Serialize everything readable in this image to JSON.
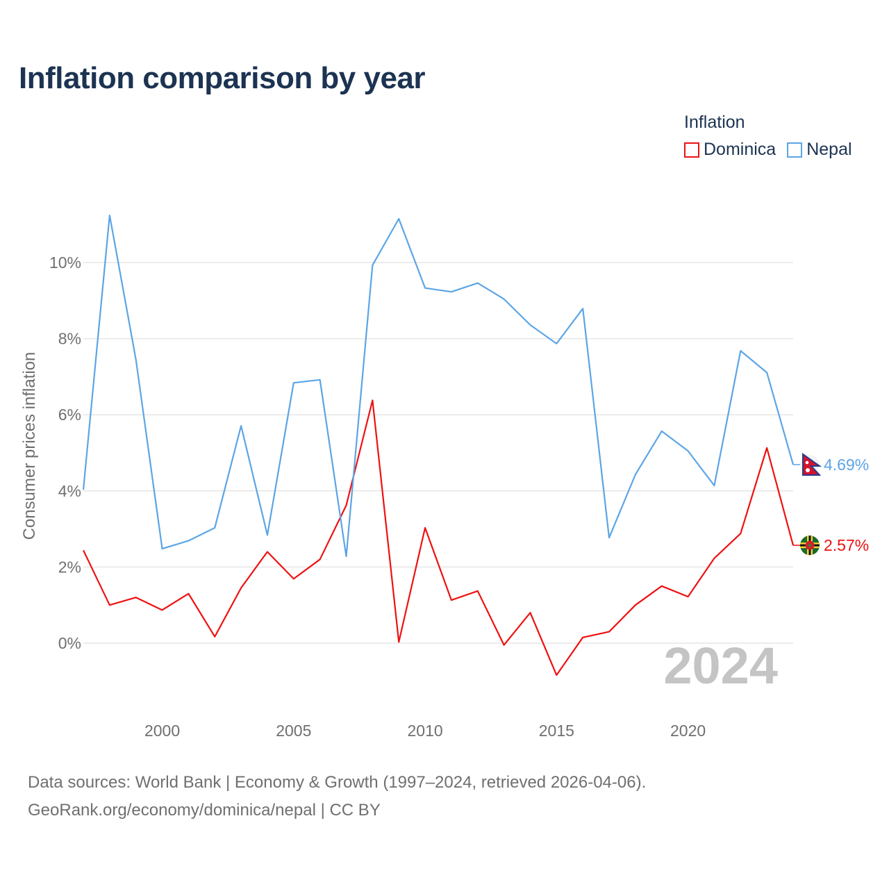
{
  "chart_data": {
    "type": "line",
    "title": "Inflation comparison by year",
    "legend_title": "Inflation",
    "ylabel": "Consumer prices inflation",
    "xlabel": "",
    "x": [
      1997,
      1998,
      1999,
      2000,
      2001,
      2002,
      2003,
      2004,
      2005,
      2006,
      2007,
      2008,
      2009,
      2010,
      2011,
      2012,
      2013,
      2014,
      2015,
      2016,
      2017,
      2018,
      2019,
      2020,
      2021,
      2022,
      2023,
      2024
    ],
    "xticks": [
      2000,
      2005,
      2010,
      2015,
      2020
    ],
    "xtick_labels": [
      "2000",
      "2005",
      "2010",
      "2015",
      "2020"
    ],
    "yticks": [
      0,
      2,
      4,
      6,
      8,
      10
    ],
    "ytick_labels": [
      "0%",
      "2%",
      "4%",
      "6%",
      "8%",
      "10%"
    ],
    "xlim": [
      1997,
      2024
    ],
    "ylim": [
      -1.5,
      11.5
    ],
    "year_watermark": "2024",
    "series": [
      {
        "name": "Dominica",
        "color": "#ee1111",
        "values": [
          2.44,
          1.0,
          1.2,
          0.87,
          1.3,
          0.17,
          1.45,
          2.4,
          1.69,
          2.2,
          3.62,
          6.38,
          0.03,
          3.03,
          1.13,
          1.37,
          -0.05,
          0.8,
          -0.84,
          0.15,
          0.3,
          1.0,
          1.5,
          1.22,
          2.23,
          2.88,
          5.13,
          2.57
        ],
        "end_label": "2.57%",
        "flag": "dominica-flag-icon"
      },
      {
        "name": "Nepal",
        "color": "#5ba5e5",
        "values": [
          4.03,
          11.24,
          7.45,
          2.48,
          2.69,
          3.03,
          5.71,
          2.84,
          6.84,
          6.92,
          2.28,
          9.93,
          11.15,
          9.33,
          9.23,
          9.46,
          9.04,
          8.36,
          7.87,
          8.79,
          2.77,
          4.43,
          5.57,
          5.05,
          4.14,
          7.68,
          7.11,
          4.69
        ],
        "end_label": "4.69%",
        "flag": "nepal-flag-icon"
      }
    ]
  },
  "source": {
    "line1": "Data sources: World Bank | Economy & Growth (1997–2024, retrieved 2026-04-06).",
    "line2": "GeoRank.org/economy/dominica/nepal | CC BY"
  }
}
